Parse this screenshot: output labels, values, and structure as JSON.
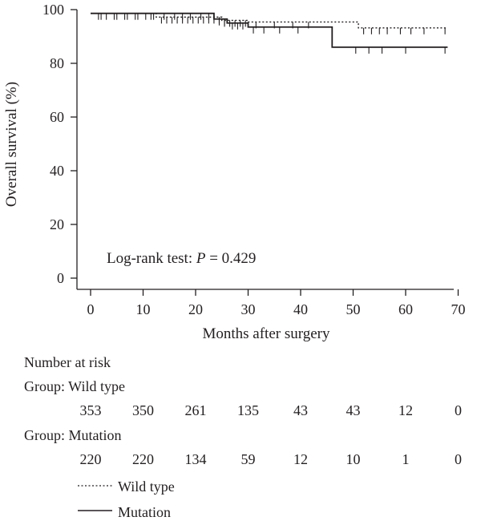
{
  "chart_data": {
    "type": "line",
    "title": "",
    "xlabel": "Months after surgery",
    "ylabel": "Overall survival (%)",
    "xlim": [
      0,
      70
    ],
    "ylim": [
      0,
      100
    ],
    "x_ticks": [
      0,
      10,
      20,
      30,
      40,
      50,
      60,
      70
    ],
    "y_ticks": [
      0,
      20,
      40,
      60,
      80,
      100
    ],
    "grid": false,
    "annotation": {
      "prefix": "Log-rank test: ",
      "italic": "P",
      "suffix": " = 0.429"
    },
    "series": [
      {
        "name": "Wild type",
        "style": "dotted",
        "steps": [
          [
            0,
            98.6
          ],
          [
            12.5,
            97.2
          ],
          [
            25,
            96.0
          ],
          [
            30,
            95.4
          ],
          [
            51,
            93.2
          ],
          [
            68,
            93.2
          ]
        ],
        "censor_ticks": [
          1.5,
          3,
          5,
          7,
          9,
          10.5,
          12,
          13.5,
          14.5,
          15.5,
          16.5,
          17.5,
          18.5,
          19.5,
          20.5,
          21.5,
          22.5,
          23.5,
          24.5,
          25.5,
          26.5,
          27.5,
          28.5,
          29.5,
          31.5,
          35,
          38.5,
          41.5,
          52,
          53.5,
          55,
          56.5,
          59,
          61,
          63.5,
          67.5
        ]
      },
      {
        "name": "Mutation",
        "style": "solid",
        "steps": [
          [
            0,
            98.6
          ],
          [
            23.5,
            96.5
          ],
          [
            26,
            95.0
          ],
          [
            30,
            93.5
          ],
          [
            46,
            86.0
          ],
          [
            68,
            86.0
          ]
        ],
        "censor_ticks": [
          2,
          4.5,
          6.5,
          8.5,
          11.5,
          14,
          16,
          17.5,
          19,
          21,
          22.5,
          24.5,
          25.5,
          27,
          28,
          29,
          31,
          33,
          36,
          39.5,
          50.5,
          53,
          55.5,
          60,
          67.5
        ]
      }
    ],
    "risk_table": {
      "heading": "Number at risk",
      "times": [
        0,
        10,
        20,
        30,
        40,
        50,
        60,
        70
      ],
      "groups": [
        {
          "label": "Group: Wild type",
          "counts": [
            "353",
            "350",
            "261",
            "135",
            "43",
            "43",
            "12",
            "0"
          ]
        },
        {
          "label": "Group: Mutation",
          "counts": [
            "220",
            "220",
            "134",
            "59",
            "12",
            "10",
            "1",
            "0"
          ]
        }
      ]
    },
    "legend": {
      "placement": "bottom-left",
      "entries": [
        {
          "label": "Wild type",
          "style": "dotted"
        },
        {
          "label": "Mutation",
          "style": "solid"
        }
      ]
    }
  }
}
